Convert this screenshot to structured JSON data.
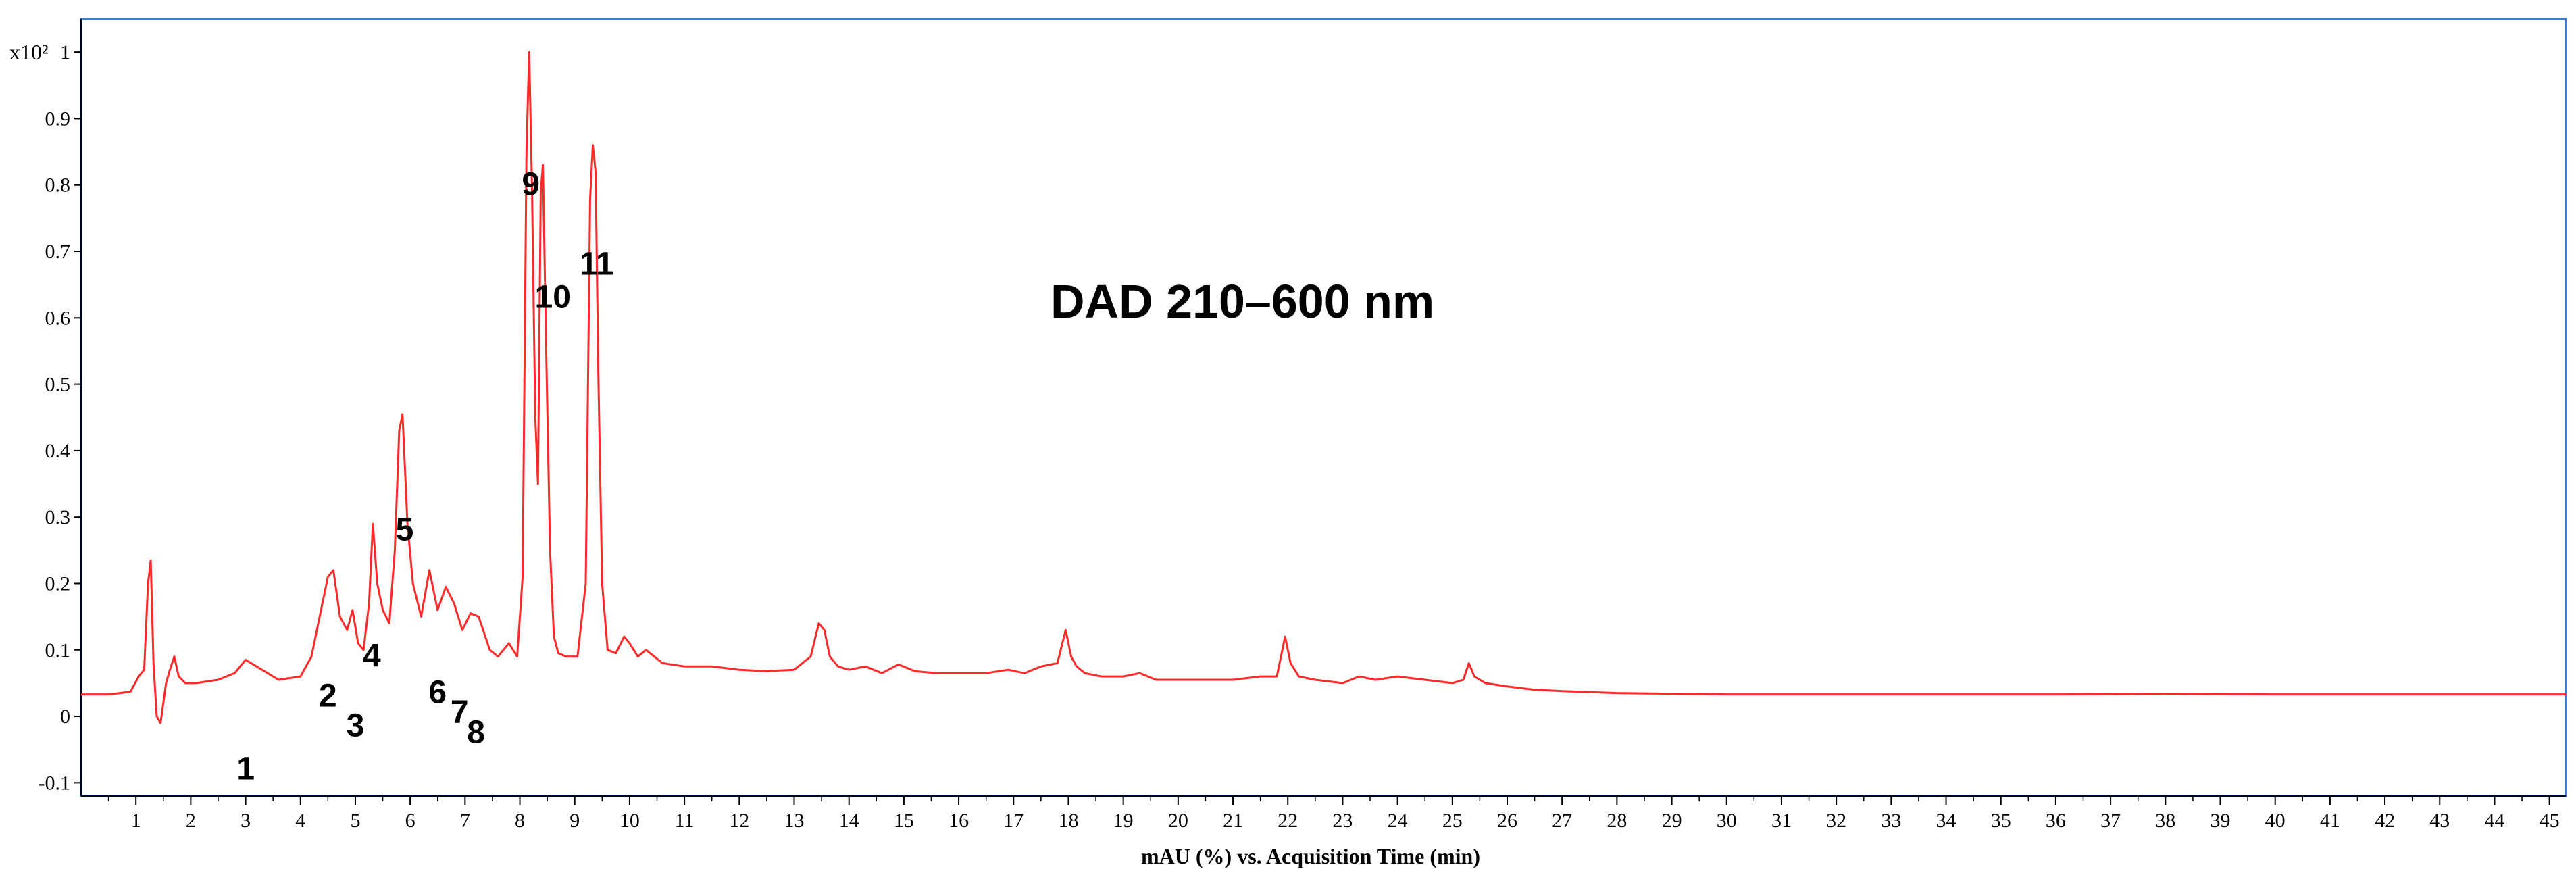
{
  "chart_data": {
    "type": "line",
    "xlabel": "mAU (%) vs. Acquisition Time (min)",
    "ylabel": "",
    "y_scale_label": "x10²",
    "annotation_main": "DAD 210–600 nm",
    "xlim": [
      0,
      45.3
    ],
    "ylim": [
      -0.12,
      1.05
    ],
    "x_ticks": [
      "1",
      "2",
      "3",
      "4",
      "5",
      "6",
      "7",
      "8",
      "9",
      "10",
      "11",
      "12",
      "13",
      "14",
      "15",
      "16",
      "17",
      "18",
      "19",
      "20",
      "21",
      "22",
      "23",
      "24",
      "25",
      "26",
      "27",
      "28",
      "29",
      "30",
      "31",
      "32",
      "33",
      "34",
      "35",
      "36",
      "37",
      "38",
      "39",
      "40",
      "41",
      "42",
      "43",
      "44",
      "45"
    ],
    "y_ticks": [
      "-0.1",
      "0",
      "0.1",
      "0.2",
      "0.3",
      "0.4",
      "0.5",
      "0.6",
      "0.7",
      "0.8",
      "0.9",
      "1"
    ],
    "grid": false,
    "legend": "none",
    "line_color": "#ff2a2a",
    "frame_color": "#3a7bd5",
    "peak_labels": [
      {
        "text": "1",
        "x": 3.0,
        "y": -0.095
      },
      {
        "text": "2",
        "x": 4.5,
        "y": 0.015
      },
      {
        "text": "3",
        "x": 5.0,
        "y": -0.03
      },
      {
        "text": "4",
        "x": 5.3,
        "y": 0.075
      },
      {
        "text": "5",
        "x": 5.9,
        "y": 0.265
      },
      {
        "text": "6",
        "x": 6.5,
        "y": 0.02
      },
      {
        "text": "7",
        "x": 6.9,
        "y": -0.01
      },
      {
        "text": "8",
        "x": 7.2,
        "y": -0.04
      },
      {
        "text": "9",
        "x": 8.2,
        "y": 0.785
      },
      {
        "text": "10",
        "x": 8.6,
        "y": 0.615
      },
      {
        "text": "11",
        "x": 9.4,
        "y": 0.665
      }
    ],
    "series": [
      {
        "x": [
          0.0,
          0.5,
          0.9,
          1.05,
          1.15,
          1.22,
          1.27,
          1.32,
          1.38,
          1.45,
          1.55,
          1.62,
          1.7,
          1.78,
          1.9,
          2.1,
          2.5,
          2.8,
          3.0,
          3.2,
          3.6,
          4.0,
          4.2,
          4.4,
          4.5,
          4.6,
          4.72,
          4.85,
          4.95,
          5.05,
          5.15,
          5.25,
          5.32,
          5.4,
          5.5,
          5.62,
          5.72,
          5.8,
          5.86,
          5.95,
          6.05,
          6.2,
          6.35,
          6.5,
          6.65,
          6.8,
          6.95,
          7.1,
          7.25,
          7.45,
          7.6,
          7.8,
          7.95,
          8.05,
          8.12,
          8.17,
          8.22,
          8.28,
          8.33,
          8.38,
          8.42,
          8.48,
          8.55,
          8.62,
          8.7,
          8.85,
          9.05,
          9.2,
          9.28,
          9.33,
          9.38,
          9.43,
          9.5,
          9.6,
          9.75,
          9.9,
          10.0,
          10.15,
          10.3,
          10.6,
          11.0,
          11.5,
          12.0,
          12.5,
          13.0,
          13.3,
          13.45,
          13.55,
          13.65,
          13.8,
          14.0,
          14.3,
          14.6,
          14.9,
          15.2,
          15.6,
          16.0,
          16.5,
          16.9,
          17.2,
          17.5,
          17.8,
          17.95,
          18.05,
          18.15,
          18.3,
          18.6,
          19.0,
          19.3,
          19.6,
          20.0,
          20.5,
          21.0,
          21.5,
          21.8,
          21.95,
          22.05,
          22.2,
          22.5,
          23.0,
          23.3,
          23.6,
          24.0,
          24.5,
          25.0,
          25.2,
          25.3,
          25.4,
          25.6,
          26.0,
          26.5,
          27.0,
          28.0,
          29.0,
          30.0,
          32.0,
          34.0,
          36.0,
          38.0,
          40.0,
          42.0,
          44.0,
          45.3
        ],
        "y": [
          0.033,
          0.033,
          0.037,
          0.06,
          0.07,
          0.2,
          0.235,
          0.08,
          0.0,
          -0.01,
          0.05,
          0.07,
          0.09,
          0.06,
          0.05,
          0.05,
          0.055,
          0.065,
          0.085,
          0.075,
          0.055,
          0.06,
          0.09,
          0.17,
          0.21,
          0.22,
          0.15,
          0.13,
          0.16,
          0.11,
          0.1,
          0.17,
          0.29,
          0.2,
          0.16,
          0.14,
          0.25,
          0.43,
          0.455,
          0.29,
          0.2,
          0.15,
          0.22,
          0.16,
          0.195,
          0.17,
          0.13,
          0.155,
          0.15,
          0.1,
          0.09,
          0.11,
          0.09,
          0.21,
          0.85,
          1.0,
          0.8,
          0.45,
          0.35,
          0.79,
          0.83,
          0.55,
          0.25,
          0.12,
          0.095,
          0.09,
          0.09,
          0.2,
          0.78,
          0.86,
          0.82,
          0.52,
          0.2,
          0.1,
          0.095,
          0.12,
          0.11,
          0.09,
          0.1,
          0.08,
          0.075,
          0.075,
          0.07,
          0.068,
          0.07,
          0.09,
          0.14,
          0.13,
          0.09,
          0.075,
          0.07,
          0.075,
          0.065,
          0.078,
          0.068,
          0.065,
          0.065,
          0.065,
          0.07,
          0.065,
          0.075,
          0.08,
          0.13,
          0.09,
          0.075,
          0.065,
          0.06,
          0.06,
          0.065,
          0.055,
          0.055,
          0.055,
          0.055,
          0.06,
          0.06,
          0.12,
          0.08,
          0.06,
          0.055,
          0.05,
          0.06,
          0.055,
          0.06,
          0.055,
          0.05,
          0.055,
          0.08,
          0.06,
          0.05,
          0.045,
          0.04,
          0.038,
          0.035,
          0.034,
          0.033,
          0.033,
          0.033,
          0.033,
          0.034,
          0.033,
          0.033,
          0.033,
          0.033
        ]
      }
    ]
  }
}
